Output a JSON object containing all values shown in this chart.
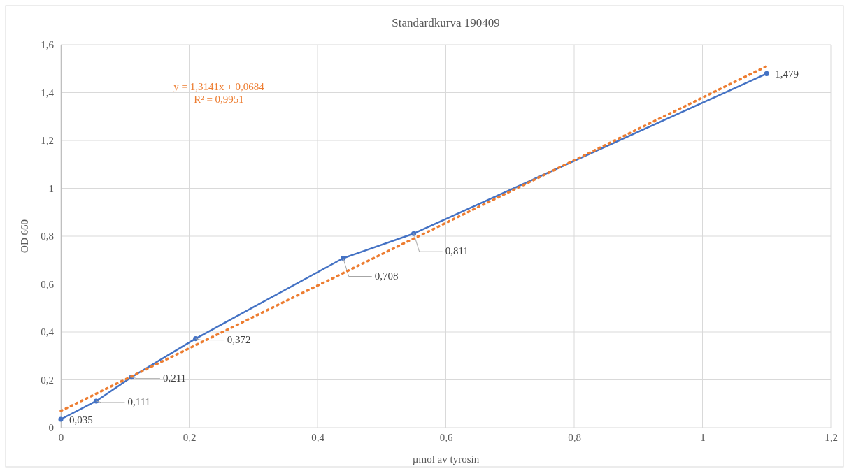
{
  "chart_data": {
    "type": "line",
    "title": "Standardkurva 190409",
    "xlabel": "µmol av tyrosin",
    "ylabel": "OD 660",
    "xlim": [
      0,
      1.2
    ],
    "xticks": [
      0,
      {
        "value": 0.2,
        "label": "0,2"
      },
      {
        "value": 0.4,
        "label": "0,4"
      },
      {
        "value": 0.6,
        "label": "0,6"
      },
      {
        "value": 0.8,
        "label": "0,8"
      },
      1,
      {
        "value": 1.2,
        "label": "1,2"
      }
    ],
    "ylim": [
      0,
      1.6
    ],
    "yticks": [
      0,
      {
        "value": 0.2,
        "label": "0,2"
      },
      {
        "value": 0.4,
        "label": "0,4"
      },
      {
        "value": 0.6,
        "label": "0,6"
      },
      {
        "value": 0.8,
        "label": "0,8"
      },
      1,
      {
        "value": 1.2,
        "label": "1,2"
      },
      {
        "value": 1.4,
        "label": "1,4"
      },
      {
        "value": 1.6,
        "label": "1,6"
      }
    ],
    "grid": true,
    "marker": "circle",
    "series": [
      {
        "color": "#4472c4",
        "line_style": "solid",
        "x": [
          0,
          0.055,
          0.11,
          0.21,
          0.44,
          0.55,
          1.1
        ],
        "values": [
          0.035,
          0.111,
          0.211,
          0.372,
          0.708,
          0.811,
          1.479
        ],
        "value_labels": [
          "0,035",
          "0,111",
          "0,211",
          "0,372",
          "0,708",
          "0,811",
          "1,479"
        ]
      },
      {
        "type": "line",
        "color": "#ed7d31",
        "line_style": "dotted",
        "marker": "none",
        "x": [
          0,
          1.1
        ],
        "values": [
          0.07,
          1.51
        ]
      }
    ],
    "annotations": [
      "y = 1,3141x + 0,0684",
      "R² = 0,9951"
    ]
  }
}
